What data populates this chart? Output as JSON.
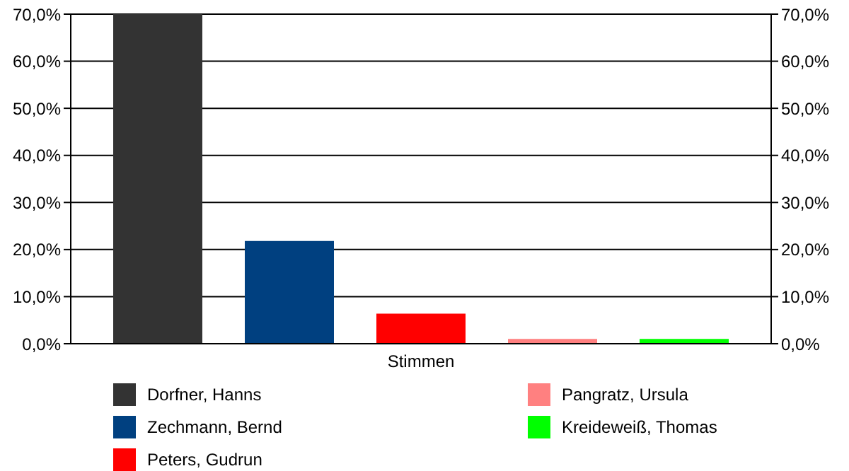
{
  "chart_data": {
    "type": "bar",
    "categories": [
      "Stimmen"
    ],
    "series": [
      {
        "name": "Dorfner, Hanns",
        "color": "#333333",
        "values": [
          70.0
        ]
      },
      {
        "name": "Zechmann, Bernd",
        "color": "#004080",
        "values": [
          21.8
        ]
      },
      {
        "name": "Peters, Gudrun",
        "color": "#ff0000",
        "values": [
          6.4
        ]
      },
      {
        "name": "Pangratz, Ursula",
        "color": "#ff8080",
        "values": [
          1.0
        ]
      },
      {
        "name": "Kreideweiß, Thomas",
        "color": "#00ff00",
        "values": [
          1.0
        ]
      }
    ],
    "ylim": [
      0,
      70
    ],
    "yticks": [
      {
        "value": 0,
        "label": "0,0%"
      },
      {
        "value": 10,
        "label": "10,0%"
      },
      {
        "value": 20,
        "label": "20,0%"
      },
      {
        "value": 30,
        "label": "30,0%"
      },
      {
        "value": 40,
        "label": "40,0%"
      },
      {
        "value": 50,
        "label": "50,0%"
      },
      {
        "value": 60,
        "label": "60,0%"
      },
      {
        "value": 70,
        "label": "70,0%"
      }
    ],
    "grid": "y",
    "legend": "bottom"
  }
}
